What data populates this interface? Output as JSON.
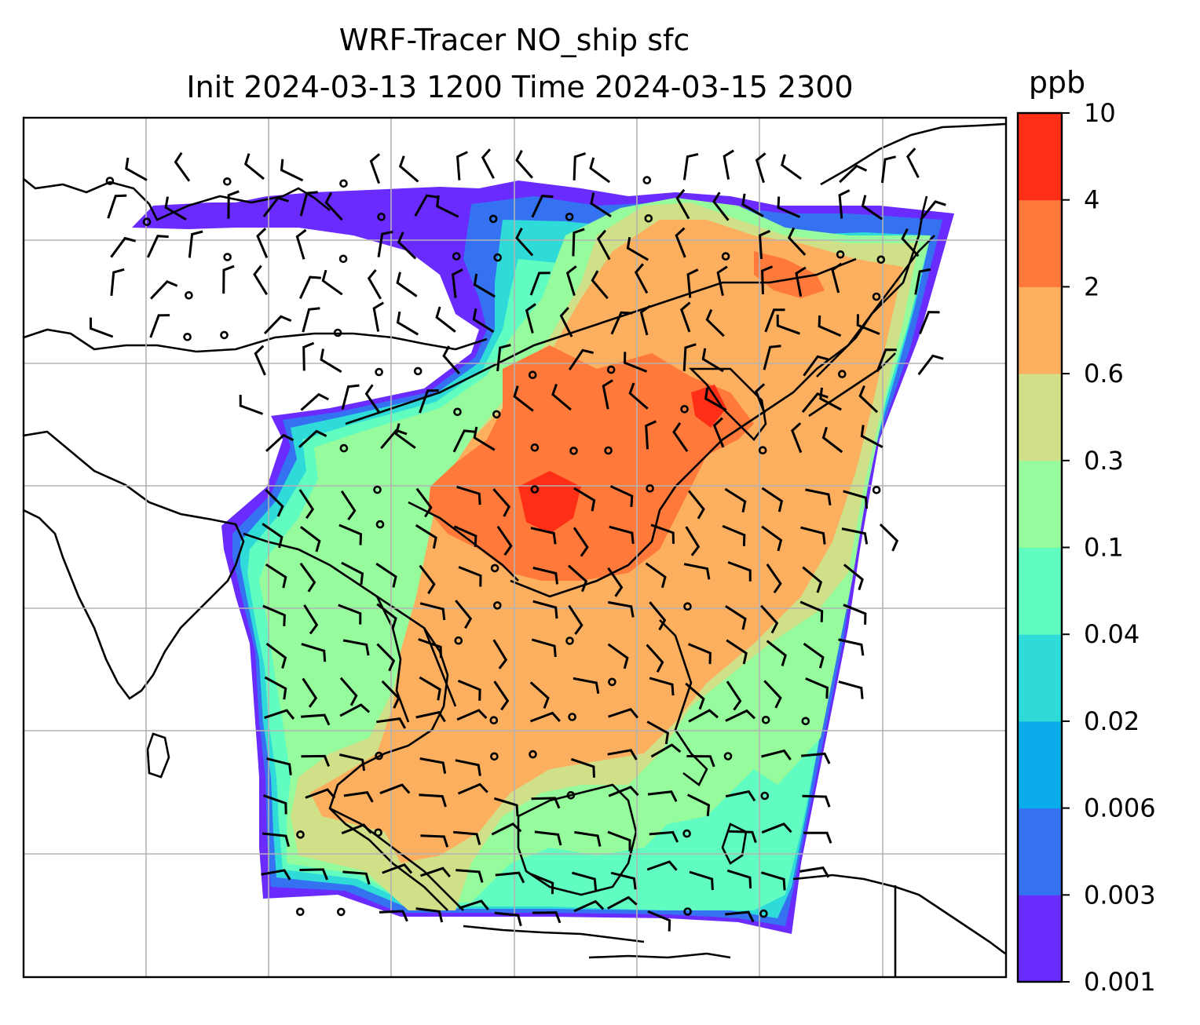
{
  "title": {
    "line1": "WRF-Tracer NO_ship sfc",
    "line2": "Init 2024-03-13 1200 Time 2024-03-15 2300"
  },
  "colorbar": {
    "unit": "ppb",
    "levels": [
      "0.001",
      "0.003",
      "0.006",
      "0.02",
      "0.04",
      "0.1",
      "0.3",
      "0.6",
      "2",
      "4",
      "10"
    ],
    "colors": [
      "#6a2bff",
      "#3472f2",
      "#0aaceb",
      "#2edbd8",
      "#60fcc0",
      "#95fb9c",
      "#cfe088",
      "#fdaf60",
      "#ff7a3a",
      "#ff2e17"
    ]
  },
  "map": {
    "gridlines": true,
    "features": [
      "coastlines",
      "country-borders",
      "wind-barbs",
      "calm-wind-circles",
      "tracer-concentration-field"
    ]
  }
}
